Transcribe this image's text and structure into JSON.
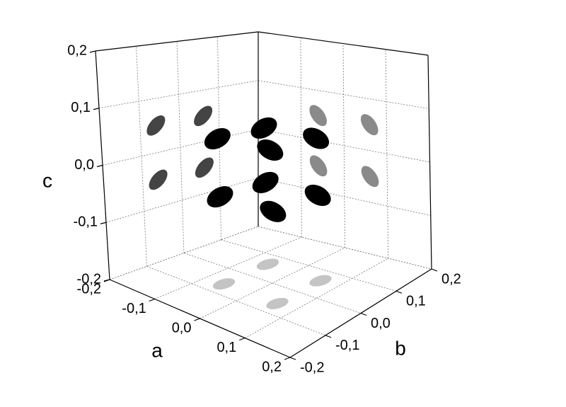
{
  "chart_data": {
    "type": "scatter3d",
    "xlabel": "a",
    "ylabel": "b",
    "zlabel": "c",
    "x": [
      -0.06,
      0.06,
      -0.06,
      0.06,
      -0.06,
      0.06,
      -0.06,
      0.06
    ],
    "y": [
      -0.06,
      -0.06,
      0.06,
      0.06,
      -0.06,
      -0.06,
      0.06,
      0.06
    ],
    "z": [
      -0.05,
      -0.05,
      -0.05,
      -0.05,
      0.05,
      0.05,
      0.05,
      0.05
    ],
    "color": "#000000",
    "projection_colors": {
      "a_wall": "#444444",
      "b_wall": "#8a8a8a",
      "floor": "#c4c4c4"
    },
    "xlim": [
      -0.2,
      0.2
    ],
    "ylim": [
      -0.2,
      0.2
    ],
    "zlim": [
      -0.2,
      0.2
    ],
    "xticks": [
      {
        "value": -0.2,
        "label": "-0,2"
      },
      {
        "value": -0.1,
        "label": "-0,1"
      },
      {
        "value": 0,
        "label": "0,0"
      },
      {
        "value": 0.1,
        "label": "0,1"
      },
      {
        "value": 0.2,
        "label": "0,2"
      }
    ],
    "yticks": [
      {
        "value": -0.2,
        "label": "-0,2"
      },
      {
        "value": -0.1,
        "label": "-0,1"
      },
      {
        "value": 0,
        "label": "0,0"
      },
      {
        "value": 0.1,
        "label": "0,1"
      },
      {
        "value": 0.2,
        "label": "0,2"
      }
    ],
    "zticks": [
      {
        "value": -0.2,
        "label": "-0,2"
      },
      {
        "value": -0.1,
        "label": "-0,1"
      },
      {
        "value": 0,
        "label": "0,0"
      },
      {
        "value": 0.1,
        "label": "0,1"
      },
      {
        "value": 0.2,
        "label": "0,2"
      }
    ],
    "grid": true
  }
}
